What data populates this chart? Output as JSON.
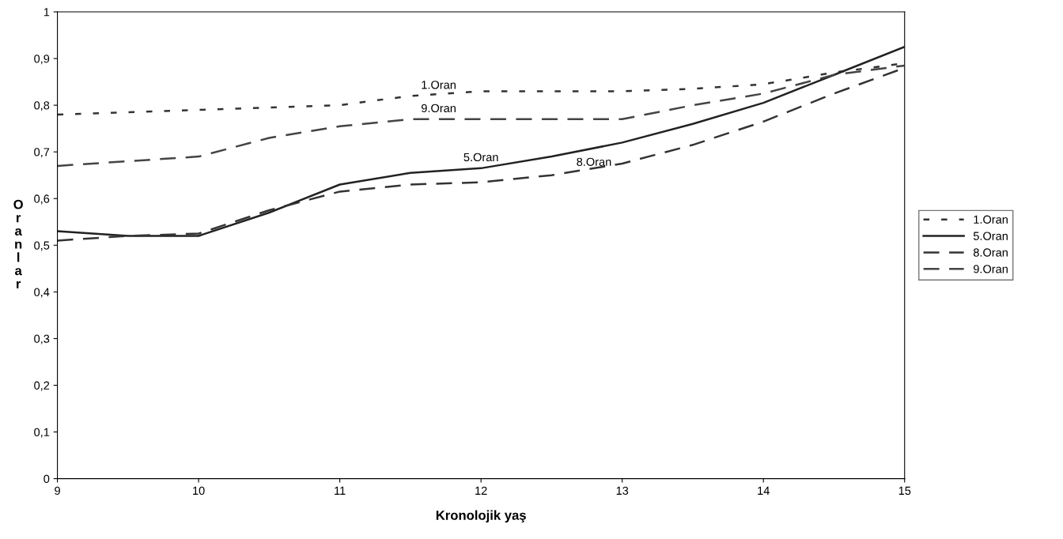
{
  "chart_data": {
    "type": "line",
    "xlabel": "Kronolojik yaş",
    "ylabel": "Oranlar",
    "x": [
      9,
      9.5,
      10,
      10.5,
      11,
      11.5,
      12,
      12.5,
      13,
      13.5,
      14,
      14.5,
      15
    ],
    "series": [
      {
        "name": "1.Oran",
        "color": "#333333",
        "line_style": "dotted",
        "values": [
          0.78,
          0.785,
          0.79,
          0.795,
          0.8,
          0.82,
          0.83,
          0.83,
          0.83,
          0.835,
          0.845,
          0.87,
          0.89
        ]
      },
      {
        "name": "5.Oran",
        "color": "#222222",
        "line_style": "solid",
        "values": [
          0.53,
          0.52,
          0.52,
          0.57,
          0.63,
          0.655,
          0.665,
          0.69,
          0.72,
          0.76,
          0.805,
          0.865,
          0.925
        ]
      },
      {
        "name": "8.Oran",
        "color": "#333333",
        "line_style": "dashed",
        "values": [
          0.51,
          0.52,
          0.525,
          0.575,
          0.615,
          0.63,
          0.635,
          0.65,
          0.675,
          0.715,
          0.765,
          0.825,
          0.88
        ]
      },
      {
        "name": "9.Oran",
        "color": "#444444",
        "line_style": "dashed",
        "values": [
          0.67,
          0.68,
          0.69,
          0.73,
          0.755,
          0.77,
          0.77,
          0.77,
          0.77,
          0.8,
          0.825,
          0.865,
          0.885
        ]
      }
    ],
    "annotations": [
      {
        "text": "1.Oran",
        "x": 11.7,
        "y": 0.83
      },
      {
        "text": "9.Oran",
        "x": 11.7,
        "y": 0.78
      },
      {
        "text": "5.Oran",
        "x": 12.0,
        "y": 0.675
      },
      {
        "text": "8.Oran",
        "x": 12.8,
        "y": 0.665
      }
    ],
    "xlim": [
      9,
      15
    ],
    "xticks": [
      9,
      10,
      11,
      12,
      13,
      14,
      15
    ],
    "ylim": [
      0,
      1
    ],
    "yticks": [
      0,
      {
        "value": 0.1,
        "label": "0,1"
      },
      {
        "value": 0.2,
        "label": "0,2"
      },
      {
        "value": 0.3,
        "label": "0,3"
      },
      {
        "value": 0.4,
        "label": "0,4"
      },
      {
        "value": 0.5,
        "label": "0,5"
      },
      {
        "value": 0.6,
        "label": "0,6"
      },
      {
        "value": 0.7,
        "label": "0,7"
      },
      {
        "value": 0.8,
        "label": "0,8"
      },
      {
        "value": 0.9,
        "label": "0,9"
      },
      1
    ],
    "grid": false,
    "legend": "right",
    "marker": "none"
  }
}
